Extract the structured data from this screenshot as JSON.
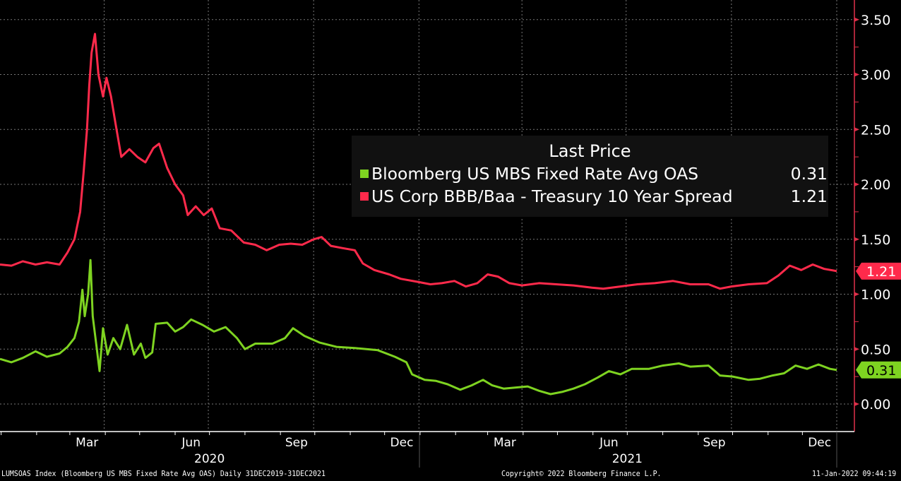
{
  "chart_data": {
    "type": "line",
    "legend_title": "Last Price",
    "legend_placement": "center-right",
    "grid": true,
    "xlim": [
      "2019-12-31",
      "2021-12-31"
    ],
    "ylim": [
      -0.22,
      3.65
    ],
    "yticks": [
      "0.00",
      "0.50",
      "1.00",
      "1.50",
      "2.00",
      "2.50",
      "3.00",
      "3.50"
    ],
    "ytick_values": [
      0,
      0.5,
      1,
      1.5,
      2,
      2.5,
      3,
      3.5
    ],
    "xticks": [
      {
        "label": "Mar",
        "date": "2020-03-16"
      },
      {
        "label": "Jun",
        "date": "2020-06-15"
      },
      {
        "label": "Sep",
        "date": "2020-09-15"
      },
      {
        "label": "Dec",
        "date": "2020-12-16"
      },
      {
        "label": "Mar",
        "date": "2021-03-16"
      },
      {
        "label": "Jun",
        "date": "2021-06-15"
      },
      {
        "label": "Sep",
        "date": "2021-09-15"
      },
      {
        "label": "Dec",
        "date": "2021-12-16"
      }
    ],
    "years": [
      {
        "label": "2020",
        "date": "2020-07-01"
      },
      {
        "label": "2021",
        "date": "2021-07-01"
      }
    ],
    "series": [
      {
        "name": "Bloomberg US MBS Fixed Rate Avg OAS",
        "last": "0.31",
        "color": "#7ed321",
        "x": [
          "2019-12-31",
          "2020-01-10",
          "2020-01-20",
          "2020-01-31",
          "2020-02-10",
          "2020-02-21",
          "2020-02-28",
          "2020-03-05",
          "2020-03-09",
          "2020-03-12",
          "2020-03-14",
          "2020-03-17",
          "2020-03-19",
          "2020-03-21",
          "2020-03-24",
          "2020-03-27",
          "2020-03-30",
          "2020-04-03",
          "2020-04-08",
          "2020-04-14",
          "2020-04-20",
          "2020-04-26",
          "2020-05-02",
          "2020-05-06",
          "2020-05-12",
          "2020-05-15",
          "2020-05-25",
          "2020-06-01",
          "2020-06-08",
          "2020-06-15",
          "2020-06-25",
          "2020-07-05",
          "2020-07-15",
          "2020-07-25",
          "2020-08-01",
          "2020-08-10",
          "2020-08-25",
          "2020-09-05",
          "2020-09-12",
          "2020-09-22",
          "2020-10-05",
          "2020-10-20",
          "2020-11-05",
          "2020-11-25",
          "2020-12-10",
          "2020-12-20",
          "2020-12-25",
          "2021-01-05",
          "2021-01-15",
          "2021-01-25",
          "2021-02-05",
          "2021-02-15",
          "2021-02-25",
          "2021-03-05",
          "2021-03-15",
          "2021-03-25",
          "2021-04-05",
          "2021-04-15",
          "2021-04-25",
          "2021-05-05",
          "2021-05-15",
          "2021-05-25",
          "2021-06-05",
          "2021-06-15",
          "2021-06-25",
          "2021-07-05",
          "2021-07-20",
          "2021-08-01",
          "2021-08-15",
          "2021-08-25",
          "2021-09-10",
          "2021-09-20",
          "2021-10-01",
          "2021-10-15",
          "2021-10-25",
          "2021-11-05",
          "2021-11-15",
          "2021-11-25",
          "2021-12-05",
          "2021-12-15",
          "2021-12-25",
          "2021-12-31"
        ],
        "y": [
          0.41,
          0.38,
          0.42,
          0.48,
          0.43,
          0.46,
          0.52,
          0.6,
          0.75,
          1.04,
          0.8,
          1.0,
          1.31,
          0.8,
          0.55,
          0.3,
          0.69,
          0.45,
          0.6,
          0.5,
          0.72,
          0.45,
          0.55,
          0.42,
          0.47,
          0.73,
          0.74,
          0.66,
          0.7,
          0.77,
          0.72,
          0.66,
          0.7,
          0.6,
          0.5,
          0.55,
          0.55,
          0.6,
          0.69,
          0.62,
          0.56,
          0.52,
          0.51,
          0.49,
          0.43,
          0.38,
          0.27,
          0.22,
          0.21,
          0.18,
          0.13,
          0.17,
          0.22,
          0.17,
          0.14,
          0.15,
          0.16,
          0.12,
          0.09,
          0.11,
          0.14,
          0.18,
          0.24,
          0.3,
          0.27,
          0.32,
          0.32,
          0.35,
          0.37,
          0.34,
          0.35,
          0.26,
          0.25,
          0.22,
          0.23,
          0.26,
          0.28,
          0.35,
          0.32,
          0.36,
          0.32,
          0.31
        ]
      },
      {
        "name": "US Corp BBB/Baa - Treasury 10 Year Spread",
        "last": "1.21",
        "color": "#ff2a4b",
        "x": [
          "2019-12-31",
          "2020-01-10",
          "2020-01-20",
          "2020-01-31",
          "2020-02-10",
          "2020-02-21",
          "2020-02-28",
          "2020-03-05",
          "2020-03-10",
          "2020-03-13",
          "2020-03-16",
          "2020-03-18",
          "2020-03-20",
          "2020-03-23",
          "2020-03-26",
          "2020-03-30",
          "2020-04-02",
          "2020-04-06",
          "2020-04-10",
          "2020-04-15",
          "2020-04-22",
          "2020-04-29",
          "2020-05-06",
          "2020-05-13",
          "2020-05-18",
          "2020-05-25",
          "2020-06-01",
          "2020-06-08",
          "2020-06-12",
          "2020-06-19",
          "2020-06-26",
          "2020-07-03",
          "2020-07-10",
          "2020-07-20",
          "2020-07-31",
          "2020-08-10",
          "2020-08-20",
          "2020-08-31",
          "2020-09-10",
          "2020-09-20",
          "2020-09-30",
          "2020-10-07",
          "2020-10-15",
          "2020-10-25",
          "2020-11-05",
          "2020-11-12",
          "2020-11-22",
          "2020-12-05",
          "2020-12-15",
          "2020-12-31",
          "2021-01-10",
          "2021-01-20",
          "2021-01-31",
          "2021-02-10",
          "2021-02-20",
          "2021-03-01",
          "2021-03-10",
          "2021-03-20",
          "2021-03-31",
          "2021-04-15",
          "2021-04-30",
          "2021-05-15",
          "2021-05-31",
          "2021-06-10",
          "2021-06-25",
          "2021-07-10",
          "2021-07-25",
          "2021-08-10",
          "2021-08-25",
          "2021-09-10",
          "2021-09-20",
          "2021-09-30",
          "2021-10-15",
          "2021-10-31",
          "2021-11-10",
          "2021-11-20",
          "2021-11-30",
          "2021-12-10",
          "2021-12-20",
          "2021-12-31"
        ],
        "y": [
          1.27,
          1.26,
          1.3,
          1.27,
          1.29,
          1.27,
          1.38,
          1.5,
          1.75,
          2.1,
          2.5,
          2.9,
          3.2,
          3.37,
          3.0,
          2.8,
          2.97,
          2.8,
          2.55,
          2.25,
          2.32,
          2.25,
          2.2,
          2.33,
          2.37,
          2.15,
          2.0,
          1.9,
          1.72,
          1.8,
          1.72,
          1.78,
          1.6,
          1.58,
          1.47,
          1.45,
          1.4,
          1.45,
          1.46,
          1.45,
          1.5,
          1.52,
          1.44,
          1.42,
          1.4,
          1.28,
          1.22,
          1.18,
          1.14,
          1.11,
          1.09,
          1.1,
          1.12,
          1.07,
          1.1,
          1.18,
          1.16,
          1.1,
          1.08,
          1.1,
          1.09,
          1.08,
          1.06,
          1.05,
          1.07,
          1.09,
          1.1,
          1.12,
          1.09,
          1.09,
          1.05,
          1.07,
          1.09,
          1.1,
          1.17,
          1.26,
          1.22,
          1.27,
          1.23,
          1.21
        ]
      }
    ]
  },
  "footer": {
    "left": "LUMSOAS Index (Bloomberg US MBS Fixed Rate Avg OAS)  Daily 31DEC2019-31DEC2021",
    "center": "Copyright© 2022 Bloomberg Finance L.P.",
    "right": "11-Jan-2022 09:44:19"
  },
  "colors": {
    "background": "#000000",
    "legend_bg": "#111111",
    "axis": "#e0304a",
    "grid": "#777777"
  }
}
